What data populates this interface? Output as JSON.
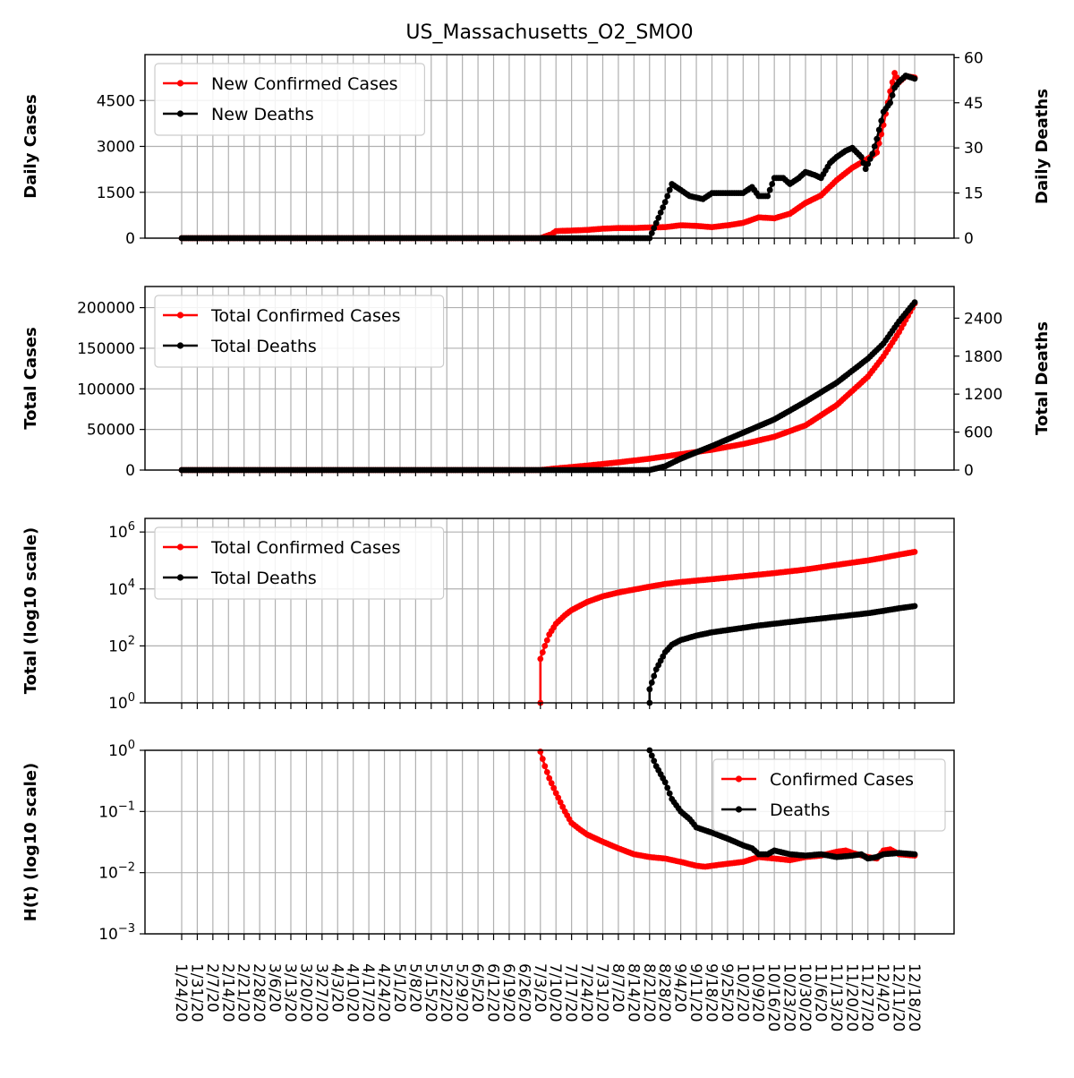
{
  "figure": {
    "title": "US_Massachusetts_O2_SMO0"
  },
  "x_ticks": [
    "1/24/20",
    "1/31/20",
    "2/7/20",
    "2/14/20",
    "2/21/20",
    "2/28/20",
    "3/6/20",
    "3/13/20",
    "3/20/20",
    "3/27/20",
    "4/3/20",
    "4/10/20",
    "4/17/20",
    "4/24/20",
    "5/1/20",
    "5/8/20",
    "5/15/20",
    "5/22/20",
    "5/29/20",
    "6/5/20",
    "6/12/20",
    "6/19/20",
    "6/26/20",
    "7/3/20",
    "7/10/20",
    "7/17/20",
    "7/24/20",
    "7/31/20",
    "8/7/20",
    "8/14/20",
    "8/21/20",
    "8/28/20",
    "9/4/20",
    "9/11/20",
    "9/18/20",
    "9/25/20",
    "10/2/20",
    "10/9/20",
    "10/16/20",
    "10/23/20",
    "10/30/20",
    "11/6/20",
    "11/13/20",
    "11/20/20",
    "11/27/20",
    "12/4/20",
    "12/11/20",
    "12/18/20"
  ],
  "chart_data": [
    {
      "type": "line",
      "panel": "daily",
      "title": "US_Massachusetts_O2_SMO0",
      "ylabel": "Daily Cases",
      "y2label": "Daily Deaths",
      "ylim": [
        0,
        6000
      ],
      "y2lim": [
        0,
        61
      ],
      "yticks": [
        0,
        1500,
        3000,
        4500
      ],
      "y2ticks": [
        0,
        15,
        30,
        45,
        60
      ],
      "grid": true,
      "legend": "top-left",
      "series": [
        {
          "name": "New Confirmed Cases",
          "axis": "left",
          "color": "#ff0000",
          "points": [
            [
              "1/24/20",
              0
            ],
            [
              "7/3/20",
              0
            ],
            [
              "7/8/20",
              130
            ],
            [
              "7/10/20",
              230
            ],
            [
              "7/17/20",
              250
            ],
            [
              "7/24/20",
              270
            ],
            [
              "7/31/20",
              310
            ],
            [
              "8/7/20",
              330
            ],
            [
              "8/14/20",
              330
            ],
            [
              "8/21/20",
              350
            ],
            [
              "8/28/20",
              360
            ],
            [
              "9/4/20",
              420
            ],
            [
              "9/11/20",
              400
            ],
            [
              "9/18/20",
              360
            ],
            [
              "9/25/20",
              420
            ],
            [
              "10/2/20",
              500
            ],
            [
              "10/9/20",
              680
            ],
            [
              "10/16/20",
              650
            ],
            [
              "10/23/20",
              800
            ],
            [
              "10/30/20",
              1150
            ],
            [
              "11/6/20",
              1400
            ],
            [
              "11/13/20",
              1900
            ],
            [
              "11/20/20",
              2300
            ],
            [
              "11/27/20",
              2600
            ],
            [
              "12/1/20",
              2800
            ],
            [
              "12/4/20",
              3700
            ],
            [
              "12/7/20",
              4800
            ],
            [
              "12/9/20",
              5400
            ],
            [
              "12/11/20",
              5100
            ],
            [
              "12/14/20",
              5300
            ],
            [
              "12/18/20",
              5250
            ]
          ]
        },
        {
          "name": "New Deaths",
          "axis": "right",
          "color": "#000000",
          "points": [
            [
              "1/24/20",
              0
            ],
            [
              "8/21/20",
              0
            ],
            [
              "8/24/20",
              5
            ],
            [
              "8/28/20",
              12
            ],
            [
              "8/31/20",
              18
            ],
            [
              "9/4/20",
              16
            ],
            [
              "9/8/20",
              14
            ],
            [
              "9/11/20",
              13.5
            ],
            [
              "9/14/20",
              13
            ],
            [
              "9/18/20",
              15
            ],
            [
              "9/25/20",
              15
            ],
            [
              "10/2/20",
              15
            ],
            [
              "10/6/20",
              17
            ],
            [
              "10/9/20",
              14
            ],
            [
              "10/13/20",
              14
            ],
            [
              "10/16/20",
              20
            ],
            [
              "10/20/20",
              20
            ],
            [
              "10/23/20",
              18
            ],
            [
              "10/27/20",
              20
            ],
            [
              "10/30/20",
              22
            ],
            [
              "11/3/20",
              21
            ],
            [
              "11/6/20",
              20
            ],
            [
              "11/10/20",
              25
            ],
            [
              "11/13/20",
              27
            ],
            [
              "11/17/20",
              29
            ],
            [
              "11/20/20",
              30
            ],
            [
              "11/24/20",
              27
            ],
            [
              "11/26/20",
              23
            ],
            [
              "11/29/20",
              28
            ],
            [
              "12/1/20",
              33
            ],
            [
              "12/4/20",
              42
            ],
            [
              "12/7/20",
              45
            ],
            [
              "12/9/20",
              50
            ],
            [
              "12/11/20",
              52
            ],
            [
              "12/14/20",
              54
            ],
            [
              "12/18/20",
              53
            ]
          ]
        }
      ]
    },
    {
      "type": "line",
      "panel": "total",
      "ylabel": "Total Cases",
      "y2label": "Total Deaths",
      "ylim": [
        0,
        226000
      ],
      "y2lim": [
        0,
        2900
      ],
      "yticks": [
        0,
        50000,
        100000,
        150000,
        200000
      ],
      "y2ticks": [
        0,
        600,
        1200,
        1800,
        2400
      ],
      "grid": true,
      "legend": "top-left",
      "series": [
        {
          "name": "Total Confirmed Cases",
          "axis": "left",
          "color": "#ff0000",
          "points": [
            [
              "1/24/20",
              0
            ],
            [
              "7/3/20",
              0
            ],
            [
              "7/10/20",
              2000
            ],
            [
              "7/24/20",
              5500
            ],
            [
              "8/7/20",
              9500
            ],
            [
              "8/21/20",
              14000
            ],
            [
              "9/4/20",
              19500
            ],
            [
              "9/18/20",
              25000
            ],
            [
              "10/2/20",
              32000
            ],
            [
              "10/16/20",
              41000
            ],
            [
              "10/30/20",
              55000
            ],
            [
              "11/13/20",
              80000
            ],
            [
              "11/27/20",
              115000
            ],
            [
              "12/4/20",
              140000
            ],
            [
              "12/11/20",
              170000
            ],
            [
              "12/18/20",
              205000
            ]
          ]
        },
        {
          "name": "Total Deaths",
          "axis": "right",
          "color": "#000000",
          "points": [
            [
              "1/24/20",
              0
            ],
            [
              "8/21/20",
              0
            ],
            [
              "8/28/20",
              60
            ],
            [
              "9/4/20",
              180
            ],
            [
              "9/18/20",
              380
            ],
            [
              "10/2/20",
              590
            ],
            [
              "10/16/20",
              800
            ],
            [
              "10/30/20",
              1080
            ],
            [
              "11/13/20",
              1380
            ],
            [
              "11/27/20",
              1760
            ],
            [
              "12/4/20",
              2000
            ],
            [
              "12/11/20",
              2350
            ],
            [
              "12/18/20",
              2650
            ]
          ]
        }
      ]
    },
    {
      "type": "line",
      "panel": "log",
      "ylabel": "Total (log10 scale)",
      "yscale": "log",
      "ylim": [
        1,
        3000000
      ],
      "yticks": [
        "10^0",
        "10^2",
        "10^4",
        "10^6"
      ],
      "grid": true,
      "legend": "top-left",
      "series": [
        {
          "name": "Total Confirmed Cases",
          "color": "#ff0000",
          "points": [
            [
              "7/3/20",
              1
            ],
            [
              "7/3/20",
              35
            ],
            [
              "7/5/20",
              100
            ],
            [
              "7/7/20",
              250
            ],
            [
              "7/10/20",
              600
            ],
            [
              "7/14/20",
              1200
            ],
            [
              "7/17/20",
              1800
            ],
            [
              "7/24/20",
              3500
            ],
            [
              "7/31/20",
              5500
            ],
            [
              "8/7/20",
              7500
            ],
            [
              "8/14/20",
              9500
            ],
            [
              "8/21/20",
              12000
            ],
            [
              "8/28/20",
              15000
            ],
            [
              "9/4/20",
              17500
            ],
            [
              "9/18/20",
              22000
            ],
            [
              "10/2/20",
              28000
            ],
            [
              "10/16/20",
              36000
            ],
            [
              "10/30/20",
              48000
            ],
            [
              "11/13/20",
              70000
            ],
            [
              "11/27/20",
              100000
            ],
            [
              "12/4/20",
              125000
            ],
            [
              "12/11/20",
              160000
            ],
            [
              "12/18/20",
              200000
            ]
          ]
        },
        {
          "name": "Total Deaths",
          "color": "#000000",
          "points": [
            [
              "8/21/20",
              1
            ],
            [
              "8/21/20",
              3
            ],
            [
              "8/24/20",
              15
            ],
            [
              "8/26/20",
              30
            ],
            [
              "8/28/20",
              60
            ],
            [
              "8/31/20",
              110
            ],
            [
              "9/4/20",
              160
            ],
            [
              "9/11/20",
              230
            ],
            [
              "9/18/20",
              300
            ],
            [
              "9/25/20",
              360
            ],
            [
              "10/2/20",
              430
            ],
            [
              "10/9/20",
              520
            ],
            [
              "10/16/20",
              600
            ],
            [
              "10/30/20",
              800
            ],
            [
              "11/13/20",
              1050
            ],
            [
              "11/27/20",
              1400
            ],
            [
              "12/4/20",
              1700
            ],
            [
              "12/11/20",
              2100
            ],
            [
              "12/18/20",
              2500
            ]
          ]
        }
      ]
    },
    {
      "type": "line",
      "panel": "ht",
      "ylabel": "H(t) (log10 scale)",
      "yscale": "log",
      "ylim": [
        0.001,
        1
      ],
      "yticks": [
        "10^-3",
        "10^-2",
        "10^-1",
        "10^0"
      ],
      "grid": true,
      "legend": "top-right",
      "series": [
        {
          "name": "Confirmed Cases",
          "color": "#ff0000",
          "points": [
            [
              "7/3/20",
              0.95
            ],
            [
              "7/5/20",
              0.55
            ],
            [
              "7/7/20",
              0.35
            ],
            [
              "7/10/20",
              0.2
            ],
            [
              "7/14/20",
              0.1
            ],
            [
              "7/17/20",
              0.065
            ],
            [
              "7/21/20",
              0.05
            ],
            [
              "7/24/20",
              0.042
            ],
            [
              "7/31/20",
              0.032
            ],
            [
              "8/7/20",
              0.025
            ],
            [
              "8/14/20",
              0.02
            ],
            [
              "8/21/20",
              0.018
            ],
            [
              "8/28/20",
              0.017
            ],
            [
              "9/4/20",
              0.015
            ],
            [
              "9/11/20",
              0.013
            ],
            [
              "9/15/20",
              0.0125
            ],
            [
              "9/18/20",
              0.013
            ],
            [
              "9/25/20",
              0.014
            ],
            [
              "10/2/20",
              0.015
            ],
            [
              "10/9/20",
              0.018
            ],
            [
              "10/16/20",
              0.017
            ],
            [
              "10/23/20",
              0.016
            ],
            [
              "10/30/20",
              0.018
            ],
            [
              "11/6/20",
              0.019
            ],
            [
              "11/13/20",
              0.022
            ],
            [
              "11/17/20",
              0.023
            ],
            [
              "11/20/20",
              0.021
            ],
            [
              "11/27/20",
              0.018
            ],
            [
              "12/1/20",
              0.017
            ],
            [
              "12/4/20",
              0.023
            ],
            [
              "12/7/20",
              0.024
            ],
            [
              "12/11/20",
              0.02
            ],
            [
              "12/18/20",
              0.019
            ]
          ]
        },
        {
          "name": "Deaths",
          "color": "#000000",
          "points": [
            [
              "8/21/20",
              1.0
            ],
            [
              "8/24/20",
              0.55
            ],
            [
              "8/28/20",
              0.3
            ],
            [
              "8/31/20",
              0.16
            ],
            [
              "9/4/20",
              0.1
            ],
            [
              "9/8/20",
              0.075
            ],
            [
              "9/11/20",
              0.055
            ],
            [
              "9/18/20",
              0.045
            ],
            [
              "9/25/20",
              0.036
            ],
            [
              "10/2/20",
              0.028
            ],
            [
              "10/6/20",
              0.025
            ],
            [
              "10/9/20",
              0.02
            ],
            [
              "10/13/20",
              0.02
            ],
            [
              "10/16/20",
              0.023
            ],
            [
              "10/23/20",
              0.02
            ],
            [
              "10/30/20",
              0.019
            ],
            [
              "11/6/20",
              0.02
            ],
            [
              "11/13/20",
              0.018
            ],
            [
              "11/20/20",
              0.019
            ],
            [
              "11/24/20",
              0.02
            ],
            [
              "11/27/20",
              0.017
            ],
            [
              "12/1/20",
              0.018
            ],
            [
              "12/4/20",
              0.02
            ],
            [
              "12/11/20",
              0.021
            ],
            [
              "12/18/20",
              0.02
            ]
          ]
        }
      ]
    }
  ]
}
